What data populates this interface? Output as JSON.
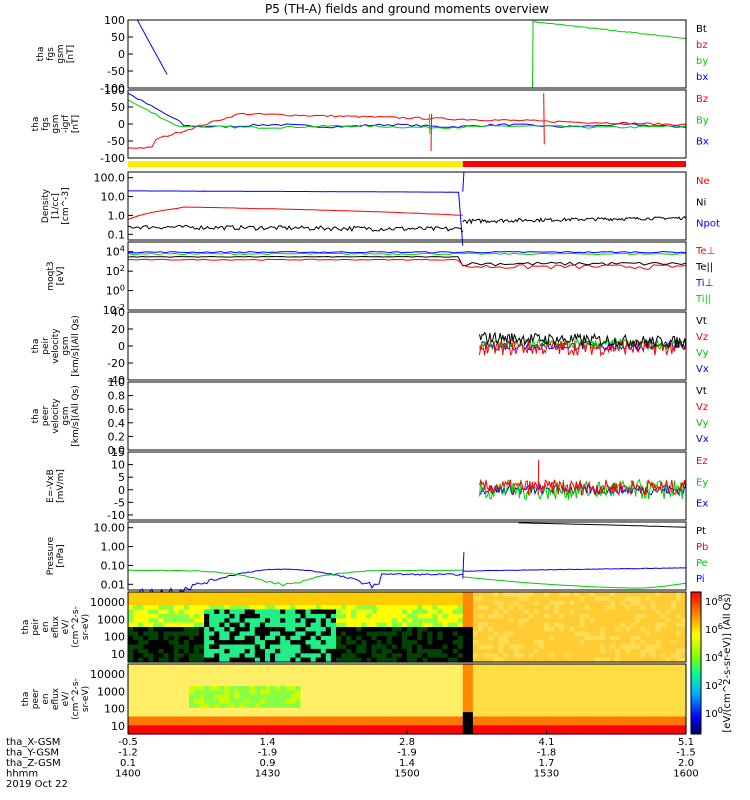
{
  "title": "P5 (TH-A) fields and ground moments overview",
  "colors": {
    "black": "#000000",
    "red": "#ff0000",
    "green": "#00cc00",
    "blue": "#0000ff",
    "yellow": "#ffee00"
  },
  "chart_data": [
    {
      "id": "fgs",
      "type": "line",
      "ylabel": [
        "tha",
        "fgs",
        "gsm",
        "[nT]"
      ],
      "ylim": [
        -100,
        100
      ],
      "log": false,
      "yticks": [
        "100",
        "50",
        "0",
        "-50",
        "-100"
      ],
      "legend": [
        {
          "name": "Bt",
          "color": "black"
        },
        {
          "name": "bz",
          "color": "red"
        },
        {
          "name": "by",
          "color": "green"
        },
        {
          "name": "bx",
          "color": "blue"
        }
      ]
    },
    {
      "id": "fgs_dc",
      "type": "line",
      "ylabel": [
        "tha",
        "fgs",
        "gsm",
        "-igrf",
        "[nT]"
      ],
      "ylim": [
        -100,
        100
      ],
      "log": false,
      "yticks": [
        "100",
        "50",
        "0",
        "-50",
        "-100"
      ],
      "legend": [
        {
          "name": "Bz",
          "color": "red"
        },
        {
          "name": "By",
          "color": "green"
        },
        {
          "name": "Bx",
          "color": "blue"
        }
      ]
    },
    {
      "id": "density",
      "type": "line",
      "ylabel": [
        "Density",
        "[1/cc]",
        "[cm^-3]"
      ],
      "ylim": [
        0.05,
        200
      ],
      "log": true,
      "yticks": [
        "100.0",
        "10.0",
        "1.0",
        "0.1"
      ],
      "legend": [
        {
          "name": "Ne",
          "color": "red"
        },
        {
          "name": "Ni",
          "color": "black"
        },
        {
          "name": "Npot",
          "color": "blue"
        }
      ]
    },
    {
      "id": "temp",
      "type": "line",
      "ylabel": [
        "moqt3",
        "[eV]"
      ],
      "ylim": [
        0.01,
        100000
      ],
      "log": true,
      "yticks": [
        "10^4",
        "10^2",
        "10^0",
        "10^-2"
      ],
      "legend": [
        {
          "name": "Te⊥",
          "color": "red"
        },
        {
          "name": "Te||",
          "color": "black"
        },
        {
          "name": "Ti⊥",
          "color": "blue"
        },
        {
          "name": "Ti||",
          "color": "green"
        }
      ]
    },
    {
      "id": "vi",
      "type": "line",
      "ylabel": [
        "tha",
        "peir",
        "velocity",
        "gsm",
        "[km/s](All Qs)"
      ],
      "ylim": [
        -40,
        40
      ],
      "log": false,
      "yticks": [
        "40",
        "20",
        "0",
        "-20",
        "-40"
      ],
      "legend": [
        {
          "name": "Vt",
          "color": "black"
        },
        {
          "name": "Vz",
          "color": "red"
        },
        {
          "name": "Vy",
          "color": "green"
        },
        {
          "name": "Vx",
          "color": "blue"
        }
      ]
    },
    {
      "id": "ve",
      "type": "line",
      "ylabel": [
        "tha",
        "peer",
        "velocity",
        "gsm",
        "[km/s](All Qs)"
      ],
      "ylim": [
        0,
        1
      ],
      "log": false,
      "yticks": [
        "1.0",
        "0.8",
        "0.6",
        "0.4",
        "0.2",
        "0.0"
      ],
      "legend": [
        {
          "name": "Vt",
          "color": "black"
        },
        {
          "name": "Vz",
          "color": "red"
        },
        {
          "name": "Vy",
          "color": "green"
        },
        {
          "name": "Vx",
          "color": "blue"
        }
      ]
    },
    {
      "id": "efield",
      "type": "line",
      "ylabel": [
        "E=-VxB",
        "[mV/m]"
      ],
      "ylim": [
        -12,
        15
      ],
      "log": false,
      "yticks": [
        "15",
        "10",
        "5",
        "0",
        "-5",
        "-10"
      ],
      "legend": [
        {
          "name": "Ez",
          "color": "red"
        },
        {
          "name": "Ey",
          "color": "green"
        },
        {
          "name": "Ex",
          "color": "blue"
        }
      ]
    },
    {
      "id": "pressure",
      "type": "line",
      "ylabel": [
        "Pressure",
        "[nPa]"
      ],
      "ylim": [
        0.005,
        20
      ],
      "log": true,
      "yticks": [
        "10.00",
        "1.00",
        "0.10",
        "0.01"
      ],
      "legend": [
        {
          "name": "Pt",
          "color": "black"
        },
        {
          "name": "Pb",
          "color": "red"
        },
        {
          "name": "Pe",
          "color": "green"
        },
        {
          "name": "Pi",
          "color": "blue"
        }
      ]
    },
    {
      "id": "peir_en",
      "type": "heatmap",
      "ylabel": [
        "tha",
        "peir",
        "en",
        "eflux",
        "eV/",
        "(cm^2-s-",
        "sr-eV)"
      ],
      "log": true,
      "yticks": [
        "10000",
        "1000",
        "100",
        "10"
      ]
    },
    {
      "id": "peer_en",
      "type": "heatmap",
      "ylabel": [
        "tha",
        "peer",
        "en",
        "eflux",
        "eV/",
        "(cm^2-s-",
        "sr-eV)"
      ],
      "log": true,
      "yticks": [
        "10000",
        "1000",
        "100",
        "10"
      ]
    }
  ],
  "colorbar": {
    "ticks": [
      "10^8",
      "10^6",
      "10^4",
      "10^2",
      "10^0"
    ],
    "label": "[eV/(cm^2-s-sr-eV)] (All Qs)"
  },
  "x_axis": {
    "labels": [
      "tha_X-GSM",
      "tha_Y-GSM",
      "tha_Z-GSM",
      "hhmm",
      "2019 Oct 22"
    ],
    "ticks": [
      {
        "x": "-0.5",
        "y": "-1.2",
        "z": "0.1",
        "t": "1400"
      },
      {
        "x": "1.4",
        "y": "-1.9",
        "z": "0.9",
        "t": "1430"
      },
      {
        "x": "2.8",
        "y": "-1.9",
        "z": "1.4",
        "t": "1500"
      },
      {
        "x": "4.1",
        "y": "-1.8",
        "z": "1.7",
        "t": "1530"
      },
      {
        "x": "5.1",
        "y": "-1.5",
        "z": "2.0",
        "t": "1600"
      }
    ]
  }
}
